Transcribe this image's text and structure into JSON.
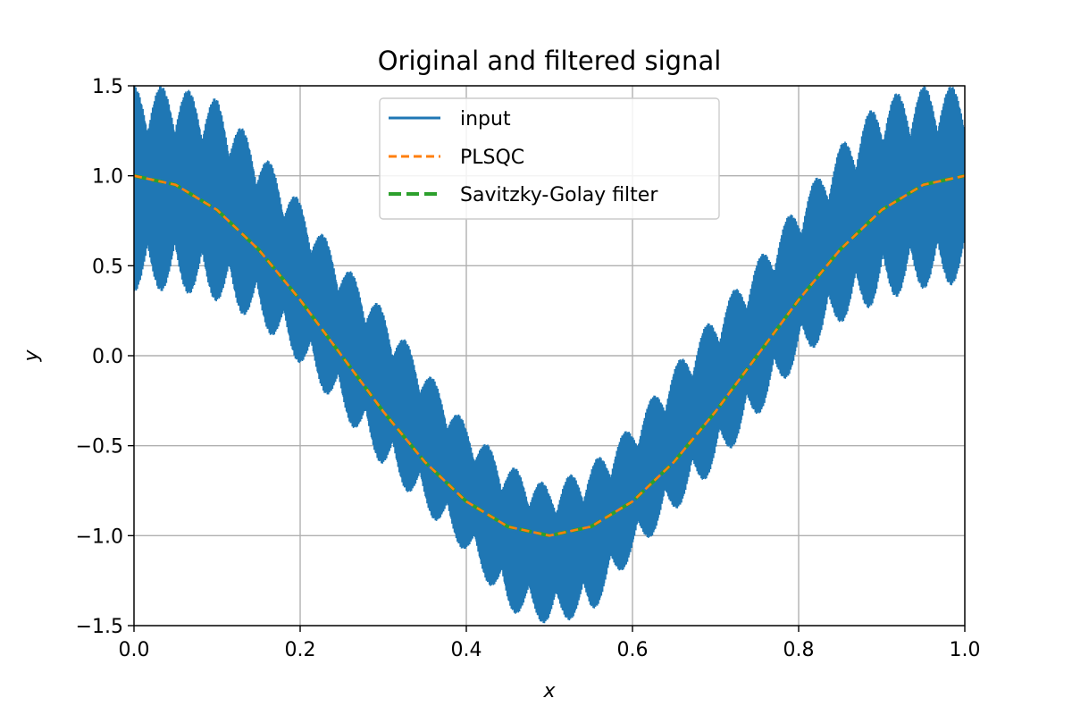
{
  "chart_data": {
    "type": "line",
    "title": "Original and filtered signal",
    "xlabel": "x",
    "ylabel": "y",
    "xlim": [
      0.0,
      1.0
    ],
    "ylim": [
      -1.5,
      1.5
    ],
    "x_ticks": [
      0.0,
      0.2,
      0.4,
      0.6,
      0.8,
      1.0
    ],
    "x_tick_labels": [
      "0.0",
      "0.2",
      "0.4",
      "0.6",
      "0.8",
      "1.0"
    ],
    "y_ticks": [
      -1.5,
      -1.0,
      -0.5,
      0.0,
      0.5,
      1.0,
      1.5
    ],
    "y_tick_labels": [
      "−1.5",
      "−1.0",
      "−0.5",
      "0.0",
      "0.5",
      "1.0",
      "1.5"
    ],
    "grid": true,
    "legend_position": "upper-center",
    "series": [
      {
        "name": "input",
        "color": "#1f77b4",
        "style": "solid",
        "x": [
          0.0,
          0.05,
          0.1,
          0.15,
          0.2,
          0.25,
          0.3,
          0.35,
          0.4,
          0.45,
          0.5,
          0.55,
          0.6,
          0.65,
          0.7,
          0.75,
          0.8,
          0.85,
          0.9,
          0.95,
          1.0
        ],
        "y_center": [
          1.0,
          0.95,
          0.81,
          0.59,
          0.31,
          0.0,
          -0.31,
          -0.59,
          -0.81,
          -0.95,
          -1.0,
          -0.95,
          -0.81,
          -0.59,
          -0.31,
          0.0,
          0.31,
          0.59,
          0.81,
          0.95,
          1.0
        ],
        "y_min": [
          0.35,
          0.36,
          0.3,
          0.18,
          -0.05,
          -0.32,
          -0.62,
          -0.86,
          -1.1,
          -1.42,
          -1.5,
          -1.44,
          -1.12,
          -0.87,
          -0.63,
          -0.34,
          -0.04,
          0.18,
          0.3,
          0.37,
          0.4
        ],
        "y_max": [
          1.5,
          1.5,
          1.43,
          1.16,
          0.86,
          0.53,
          0.26,
          -0.06,
          -0.38,
          -0.6,
          -0.72,
          -0.6,
          -0.38,
          -0.06,
          0.24,
          0.53,
          0.86,
          1.17,
          1.44,
          1.5,
          1.5
        ]
      },
      {
        "name": "PLSQC",
        "color": "#ff7f0e",
        "style": "dashed",
        "x": [
          0.0,
          0.05,
          0.1,
          0.15,
          0.2,
          0.25,
          0.3,
          0.35,
          0.4,
          0.45,
          0.5,
          0.55,
          0.6,
          0.65,
          0.7,
          0.75,
          0.8,
          0.85,
          0.9,
          0.95,
          1.0
        ],
        "y": [
          1.0,
          0.95,
          0.81,
          0.59,
          0.31,
          0.0,
          -0.31,
          -0.59,
          -0.81,
          -0.95,
          -1.0,
          -0.95,
          -0.81,
          -0.59,
          -0.31,
          0.0,
          0.31,
          0.59,
          0.81,
          0.95,
          1.0
        ]
      },
      {
        "name": "Savitzky-Golay filter",
        "color": "#2ca02c",
        "style": "dashed",
        "x": [
          0.0,
          0.05,
          0.1,
          0.15,
          0.2,
          0.25,
          0.3,
          0.35,
          0.4,
          0.45,
          0.5,
          0.55,
          0.6,
          0.65,
          0.7,
          0.75,
          0.8,
          0.85,
          0.9,
          0.95,
          1.0
        ],
        "y": [
          1.0,
          0.95,
          0.81,
          0.59,
          0.31,
          0.0,
          -0.31,
          -0.59,
          -0.81,
          -0.95,
          -1.0,
          -0.95,
          -0.81,
          -0.59,
          -0.31,
          0.0,
          0.31,
          0.59,
          0.81,
          0.95,
          1.0
        ]
      }
    ]
  }
}
